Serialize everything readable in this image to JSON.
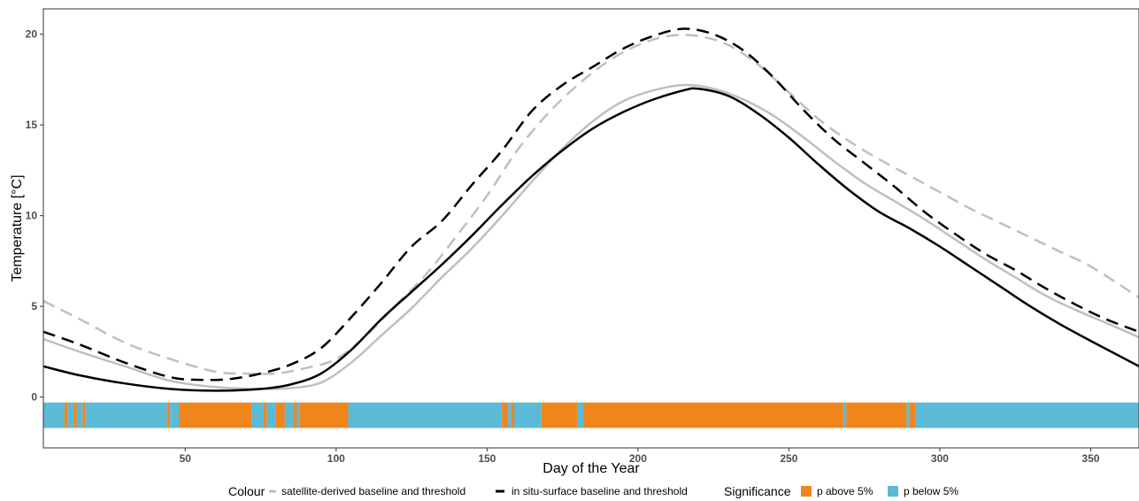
{
  "chart_data": {
    "type": "line",
    "xlabel": "Day of the Year",
    "ylabel": "Temperature [°C]",
    "xlim": [
      3,
      366
    ],
    "ylim": [
      -2.8,
      21.4
    ],
    "x_ticks": [
      50,
      100,
      150,
      200,
      250,
      300,
      350
    ],
    "y_ticks": [
      0,
      5,
      10,
      15,
      20
    ],
    "grid": false,
    "legend_position": "bottom",
    "series": [
      {
        "name": "satellite-derived baseline and threshold",
        "role": "baseline",
        "style": "solid",
        "color": "#bfbfbf",
        "points": [
          [
            3,
            3.2
          ],
          [
            15,
            2.5
          ],
          [
            30,
            1.7
          ],
          [
            45,
            0.9
          ],
          [
            60,
            0.55
          ],
          [
            75,
            0.45
          ],
          [
            85,
            0.5
          ],
          [
            95,
            0.8
          ],
          [
            105,
            1.9
          ],
          [
            115,
            3.4
          ],
          [
            125,
            4.9
          ],
          [
            135,
            6.6
          ],
          [
            145,
            8.2
          ],
          [
            155,
            10.0
          ],
          [
            165,
            11.9
          ],
          [
            175,
            13.7
          ],
          [
            185,
            15.2
          ],
          [
            195,
            16.3
          ],
          [
            205,
            16.9
          ],
          [
            215,
            17.2
          ],
          [
            225,
            17.0
          ],
          [
            235,
            16.4
          ],
          [
            245,
            15.5
          ],
          [
            255,
            14.3
          ],
          [
            265,
            13.0
          ],
          [
            275,
            11.8
          ],
          [
            285,
            10.8
          ],
          [
            295,
            9.8
          ],
          [
            305,
            8.7
          ],
          [
            315,
            7.6
          ],
          [
            325,
            6.6
          ],
          [
            335,
            5.6
          ],
          [
            345,
            4.8
          ],
          [
            355,
            4.1
          ],
          [
            366,
            3.3
          ]
        ]
      },
      {
        "name": "satellite-derived baseline and threshold",
        "role": "threshold",
        "style": "dashed",
        "color": "#bfbfbf",
        "points": [
          [
            3,
            5.3
          ],
          [
            15,
            4.3
          ],
          [
            30,
            3.0
          ],
          [
            45,
            2.1
          ],
          [
            60,
            1.4
          ],
          [
            70,
            1.3
          ],
          [
            80,
            1.3
          ],
          [
            90,
            1.6
          ],
          [
            100,
            2.1
          ],
          [
            110,
            3.4
          ],
          [
            120,
            5.1
          ],
          [
            130,
            6.8
          ],
          [
            140,
            8.9
          ],
          [
            150,
            11.1
          ],
          [
            160,
            13.6
          ],
          [
            170,
            15.6
          ],
          [
            180,
            17.2
          ],
          [
            190,
            18.5
          ],
          [
            200,
            19.4
          ],
          [
            210,
            19.9
          ],
          [
            220,
            19.9
          ],
          [
            230,
            19.4
          ],
          [
            240,
            18.3
          ],
          [
            250,
            16.8
          ],
          [
            260,
            15.3
          ],
          [
            270,
            14.1
          ],
          [
            280,
            13.1
          ],
          [
            290,
            12.2
          ],
          [
            300,
            11.3
          ],
          [
            310,
            10.4
          ],
          [
            320,
            9.6
          ],
          [
            330,
            8.8
          ],
          [
            340,
            8.0
          ],
          [
            350,
            7.2
          ],
          [
            366,
            5.5
          ]
        ]
      },
      {
        "name": "in situ-surface baseline and threshold",
        "role": "baseline",
        "style": "solid",
        "color": "#000000",
        "points": [
          [
            3,
            1.7
          ],
          [
            15,
            1.2
          ],
          [
            30,
            0.75
          ],
          [
            45,
            0.45
          ],
          [
            60,
            0.35
          ],
          [
            75,
            0.45
          ],
          [
            85,
            0.7
          ],
          [
            95,
            1.3
          ],
          [
            105,
            2.6
          ],
          [
            115,
            4.3
          ],
          [
            125,
            5.8
          ],
          [
            135,
            7.3
          ],
          [
            145,
            8.9
          ],
          [
            155,
            10.6
          ],
          [
            165,
            12.2
          ],
          [
            175,
            13.6
          ],
          [
            185,
            14.8
          ],
          [
            195,
            15.7
          ],
          [
            205,
            16.4
          ],
          [
            215,
            16.9
          ],
          [
            220,
            17.0
          ],
          [
            230,
            16.6
          ],
          [
            240,
            15.6
          ],
          [
            250,
            14.3
          ],
          [
            260,
            12.8
          ],
          [
            270,
            11.4
          ],
          [
            280,
            10.2
          ],
          [
            290,
            9.3
          ],
          [
            300,
            8.3
          ],
          [
            310,
            7.2
          ],
          [
            320,
            6.1
          ],
          [
            330,
            5.0
          ],
          [
            340,
            4.0
          ],
          [
            350,
            3.1
          ],
          [
            366,
            1.7
          ]
        ]
      },
      {
        "name": "in situ-surface baseline and threshold",
        "role": "threshold",
        "style": "dashed",
        "color": "#000000",
        "points": [
          [
            3,
            3.6
          ],
          [
            15,
            2.9
          ],
          [
            30,
            1.9
          ],
          [
            45,
            1.1
          ],
          [
            55,
            0.95
          ],
          [
            65,
            1.0
          ],
          [
            75,
            1.3
          ],
          [
            85,
            1.8
          ],
          [
            95,
            2.7
          ],
          [
            105,
            4.4
          ],
          [
            115,
            6.3
          ],
          [
            125,
            8.3
          ],
          [
            135,
            9.7
          ],
          [
            145,
            11.7
          ],
          [
            155,
            13.6
          ],
          [
            165,
            15.8
          ],
          [
            175,
            17.2
          ],
          [
            185,
            18.2
          ],
          [
            195,
            19.2
          ],
          [
            205,
            19.9
          ],
          [
            215,
            20.3
          ],
          [
            225,
            20.0
          ],
          [
            235,
            19.1
          ],
          [
            245,
            17.6
          ],
          [
            255,
            15.8
          ],
          [
            265,
            14.2
          ],
          [
            275,
            12.9
          ],
          [
            285,
            11.6
          ],
          [
            295,
            10.2
          ],
          [
            305,
            9.0
          ],
          [
            315,
            7.9
          ],
          [
            325,
            7.0
          ],
          [
            335,
            6.0
          ],
          [
            345,
            5.1
          ],
          [
            355,
            4.3
          ],
          [
            366,
            3.6
          ]
        ]
      }
    ],
    "significance": {
      "title": "Significance",
      "colors": {
        "above": "#f0851d",
        "below": "#5bbad5"
      },
      "segments": [
        {
          "from": 3,
          "to": 10,
          "level": "below"
        },
        {
          "from": 10,
          "to": 11,
          "level": "above"
        },
        {
          "from": 11,
          "to": 13,
          "level": "below"
        },
        {
          "from": 13,
          "to": 14,
          "level": "above"
        },
        {
          "from": 14,
          "to": 16,
          "level": "below"
        },
        {
          "from": 16,
          "to": 17,
          "level": "above"
        },
        {
          "from": 17,
          "to": 44,
          "level": "below"
        },
        {
          "from": 44,
          "to": 45,
          "level": "above"
        },
        {
          "from": 45,
          "to": 48,
          "level": "below"
        },
        {
          "from": 48,
          "to": 72,
          "level": "above"
        },
        {
          "from": 72,
          "to": 76,
          "level": "below"
        },
        {
          "from": 76,
          "to": 77,
          "level": "above"
        },
        {
          "from": 77,
          "to": 80,
          "level": "below"
        },
        {
          "from": 80,
          "to": 83,
          "level": "above"
        },
        {
          "from": 83,
          "to": 86,
          "level": "below"
        },
        {
          "from": 86,
          "to": 87,
          "level": "above"
        },
        {
          "from": 87,
          "to": 88,
          "level": "below"
        },
        {
          "from": 88,
          "to": 104,
          "level": "above"
        },
        {
          "from": 104,
          "to": 155,
          "level": "below"
        },
        {
          "from": 155,
          "to": 157,
          "level": "above"
        },
        {
          "from": 157,
          "to": 158,
          "level": "below"
        },
        {
          "from": 158,
          "to": 159,
          "level": "above"
        },
        {
          "from": 159,
          "to": 168,
          "level": "below"
        },
        {
          "from": 168,
          "to": 180,
          "level": "above"
        },
        {
          "from": 180,
          "to": 182,
          "level": "below"
        },
        {
          "from": 182,
          "to": 268,
          "level": "above"
        },
        {
          "from": 268,
          "to": 269,
          "level": "below"
        },
        {
          "from": 269,
          "to": 289,
          "level": "above"
        },
        {
          "from": 289,
          "to": 290,
          "level": "below"
        },
        {
          "from": 290,
          "to": 292,
          "level": "above"
        },
        {
          "from": 292,
          "to": 366,
          "level": "below"
        }
      ]
    }
  },
  "legend": {
    "colour_title": "Colour",
    "colour_items": [
      {
        "label": "satellite-derived baseline and threshold",
        "color": "#bfbfbf"
      },
      {
        "label": "in situ-surface baseline and threshold",
        "color": "#000000"
      }
    ],
    "significance_title": "Significance",
    "significance_items": [
      {
        "label": "p above 5%",
        "color": "#f0851d"
      },
      {
        "label": "p below 5%",
        "color": "#5bbad5"
      }
    ]
  }
}
